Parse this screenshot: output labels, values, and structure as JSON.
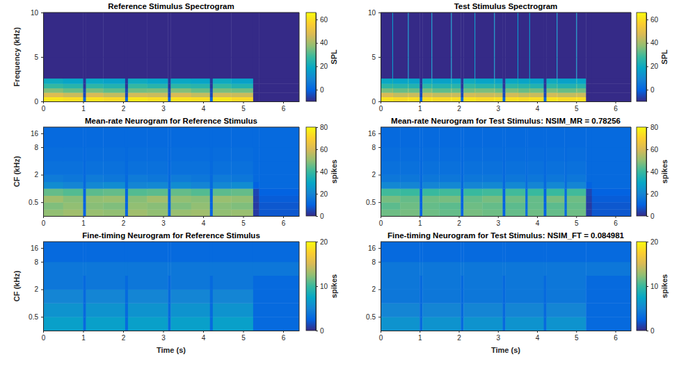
{
  "chart_data": [
    {
      "type": "heatmap",
      "title": "Reference Stimulus Spectrogram",
      "y_label": "Frequency (kHz)",
      "xlim": [
        0,
        6.4
      ],
      "xticks": [
        0,
        1,
        2,
        3,
        4,
        5,
        6
      ],
      "ylim": [
        0,
        10
      ],
      "yticks": [
        0,
        5,
        10
      ],
      "x_edges": [
        0,
        0.5,
        1.0,
        1.07,
        1.5,
        2.05,
        2.12,
        2.6,
        3.12,
        3.19,
        3.7,
        4.17,
        4.24,
        4.7,
        5.25,
        5.4,
        6.4
      ],
      "y_edges": [
        0,
        0.5,
        1,
        1.5,
        2,
        2.6,
        5,
        10
      ],
      "cells": [
        [
          62,
          60,
          0,
          61,
          59,
          0,
          62,
          60,
          0,
          61,
          60,
          0,
          62,
          59,
          -10,
          -10
        ],
        [
          48,
          45,
          -5,
          47,
          44,
          -5,
          46,
          45,
          -5,
          47,
          44,
          -5,
          46,
          45,
          -10,
          -10
        ],
        [
          36,
          33,
          -5,
          35,
          32,
          -5,
          34,
          35,
          -5,
          36,
          33,
          -5,
          35,
          34,
          -10,
          -10
        ],
        [
          27,
          25,
          -8,
          26,
          24,
          -8,
          27,
          25,
          -8,
          26,
          25,
          -8,
          27,
          24,
          -10,
          -10
        ],
        [
          20,
          18,
          -8,
          19,
          17,
          -8,
          20,
          18,
          -8,
          19,
          18,
          -8,
          20,
          17,
          -10,
          -10
        ],
        [
          -10,
          -10,
          -10,
          -10,
          -10,
          -10,
          -10,
          -10,
          -10,
          -10,
          -10,
          -10,
          -10,
          -10,
          -10,
          -10
        ],
        [
          -10,
          -10,
          -10,
          -10,
          -10,
          -10,
          -10,
          -10,
          -10,
          -10,
          -10,
          -10,
          -10,
          -10,
          -10,
          -10
        ]
      ],
      "color_range": [
        -10,
        66
      ],
      "color_ticks": [
        0,
        20,
        40,
        60
      ],
      "color_label": "SPL"
    },
    {
      "type": "heatmap",
      "title": "Test Stimulus Spectrogram",
      "xlim": [
        0,
        6.4
      ],
      "xticks": [
        0,
        1,
        2,
        3,
        4,
        5,
        6
      ],
      "ylim": [
        0,
        10
      ],
      "yticks": [
        0,
        5,
        10
      ],
      "x_edges": [
        0,
        0.3,
        0.32,
        0.7,
        0.72,
        1.0,
        1.07,
        1.3,
        1.32,
        1.8,
        1.82,
        2.05,
        2.12,
        2.4,
        2.42,
        2.9,
        2.92,
        3.12,
        3.19,
        3.5,
        3.52,
        3.8,
        3.82,
        4.17,
        4.24,
        4.5,
        4.52,
        5.0,
        5.02,
        5.25,
        5.4,
        6.4
      ],
      "y_edges": [
        0,
        0.5,
        1,
        1.5,
        2,
        2.6,
        5,
        10
      ],
      "cells": [
        [
          61,
          63,
          59,
          63,
          60,
          0,
          60,
          63,
          59,
          63,
          60,
          0,
          61,
          63,
          59,
          63,
          60,
          0,
          60,
          63,
          59,
          63,
          60,
          0,
          61,
          63,
          59,
          63,
          60,
          -10,
          -10
        ],
        [
          47,
          49,
          44,
          49,
          45,
          -5,
          46,
          49,
          44,
          49,
          45,
          -5,
          46,
          49,
          45,
          49,
          44,
          -5,
          46,
          49,
          44,
          49,
          45,
          -5,
          46,
          49,
          44,
          49,
          45,
          -10,
          -10
        ],
        [
          35,
          38,
          33,
          38,
          33,
          -5,
          35,
          38,
          32,
          38,
          33,
          -5,
          34,
          38,
          35,
          38,
          33,
          -5,
          35,
          38,
          33,
          38,
          34,
          -5,
          35,
          38,
          33,
          38,
          34,
          -10,
          -10
        ],
        [
          26,
          30,
          25,
          30,
          24,
          -8,
          26,
          30,
          24,
          30,
          25,
          -8,
          27,
          30,
          25,
          30,
          24,
          -8,
          26,
          30,
          25,
          30,
          24,
          -8,
          26,
          30,
          24,
          30,
          25,
          -10,
          -10
        ],
        [
          19,
          24,
          18,
          24,
          17,
          -8,
          19,
          24,
          17,
          24,
          18,
          -8,
          20,
          24,
          18,
          24,
          17,
          -8,
          19,
          24,
          18,
          24,
          17,
          -8,
          20,
          24,
          17,
          24,
          18,
          -10,
          -10
        ],
        [
          -10,
          15,
          -10,
          15,
          -10,
          -10,
          -10,
          15,
          -10,
          15,
          -10,
          -10,
          -10,
          15,
          -10,
          15,
          -10,
          -10,
          -10,
          15,
          -10,
          15,
          -10,
          -10,
          -10,
          15,
          -10,
          15,
          -10,
          -10,
          -10
        ],
        [
          -10,
          15,
          -10,
          15,
          -10,
          -10,
          -10,
          15,
          -10,
          15,
          -10,
          -10,
          -10,
          15,
          -10,
          15,
          -10,
          -10,
          -10,
          15,
          -10,
          15,
          -10,
          -10,
          -10,
          15,
          -10,
          15,
          -10,
          -10,
          -10
        ]
      ],
      "color_range": [
        -10,
        66
      ],
      "color_ticks": [
        0,
        20,
        40,
        60
      ],
      "color_label": "SPL"
    },
    {
      "type": "heatmap",
      "title": "Mean-rate Neurogram for Reference Stimulus",
      "y_label": "CF (kHz)",
      "log": "y",
      "xlim": [
        0,
        6.4
      ],
      "xticks": [
        0,
        1,
        2,
        3,
        4,
        5,
        6
      ],
      "ylim": [
        0.25,
        22
      ],
      "yticks": [
        0.5,
        2,
        8,
        16
      ],
      "x_edges": [
        0,
        0.5,
        1.0,
        1.07,
        1.5,
        2.05,
        2.12,
        2.6,
        3.12,
        3.19,
        3.7,
        4.17,
        4.24,
        4.7,
        5.25,
        5.4,
        6.4
      ],
      "y_edges": [
        0.25,
        0.35,
        0.5,
        0.7,
        1.0,
        1.4,
        2,
        4,
        8,
        22
      ],
      "cells": [
        [
          50,
          52,
          10,
          51,
          50,
          10,
          52,
          50,
          10,
          51,
          52,
          10,
          50,
          51,
          3,
          8
        ],
        [
          48,
          50,
          10,
          49,
          48,
          10,
          50,
          49,
          10,
          48,
          50,
          10,
          49,
          48,
          3,
          8
        ],
        [
          52,
          49,
          10,
          50,
          51,
          10,
          49,
          52,
          10,
          50,
          49,
          10,
          51,
          50,
          4,
          9
        ],
        [
          45,
          43,
          10,
          44,
          45,
          10,
          43,
          44,
          10,
          45,
          43,
          10,
          44,
          45,
          5,
          10
        ],
        [
          22,
          20,
          12,
          21,
          22,
          12,
          20,
          21,
          12,
          22,
          20,
          12,
          21,
          22,
          10,
          12
        ],
        [
          17,
          16,
          12,
          17,
          16,
          12,
          17,
          16,
          12,
          17,
          16,
          12,
          17,
          16,
          12,
          12
        ],
        [
          14,
          14,
          12,
          14,
          14,
          12,
          14,
          14,
          12,
          14,
          14,
          12,
          14,
          14,
          12,
          12
        ],
        [
          13,
          13,
          12,
          13,
          13,
          12,
          13,
          13,
          12,
          13,
          13,
          12,
          13,
          13,
          12,
          12
        ],
        [
          12,
          12,
          12,
          12,
          12,
          12,
          12,
          12,
          12,
          12,
          12,
          12,
          12,
          12,
          12,
          12
        ]
      ],
      "color_range": [
        0,
        80
      ],
      "color_ticks": [
        0,
        20,
        40,
        60,
        80
      ],
      "color_label": "spikes"
    },
    {
      "type": "heatmap",
      "title": "Mean-rate Neurogram for Test Stimulus: NSIM_MR = 0.78256",
      "log": "y",
      "xlim": [
        0,
        6.4
      ],
      "xticks": [
        0,
        1,
        2,
        3,
        4,
        5,
        6
      ],
      "ylim": [
        0.25,
        22
      ],
      "yticks": [
        0.5,
        2,
        8,
        16
      ],
      "x_edges": [
        0,
        0.5,
        1.0,
        1.07,
        1.5,
        2.05,
        2.12,
        2.6,
        3.12,
        3.19,
        3.7,
        3.76,
        4.17,
        4.24,
        4.7,
        4.76,
        5.25,
        5.4,
        6.4
      ],
      "y_edges": [
        0.25,
        0.35,
        0.5,
        0.7,
        1.0,
        1.4,
        2,
        4,
        8,
        22
      ],
      "cells": [
        [
          46,
          47,
          10,
          46,
          45,
          10,
          47,
          46,
          10,
          45,
          12,
          46,
          10,
          45,
          12,
          46,
          3,
          8
        ],
        [
          44,
          46,
          10,
          45,
          44,
          10,
          46,
          45,
          10,
          44,
          12,
          45,
          10,
          44,
          12,
          45,
          3,
          8
        ],
        [
          47,
          45,
          10,
          46,
          47,
          10,
          45,
          47,
          10,
          46,
          12,
          45,
          10,
          47,
          12,
          46,
          4,
          9
        ],
        [
          41,
          40,
          10,
          40,
          41,
          10,
          40,
          41,
          10,
          41,
          12,
          40,
          10,
          40,
          12,
          41,
          5,
          10
        ],
        [
          21,
          20,
          12,
          20,
          21,
          12,
          20,
          21,
          12,
          21,
          13,
          20,
          12,
          21,
          13,
          20,
          10,
          12
        ],
        [
          16,
          16,
          12,
          16,
          16,
          12,
          16,
          16,
          12,
          16,
          13,
          16,
          12,
          16,
          13,
          16,
          12,
          12
        ],
        [
          14,
          14,
          12,
          14,
          14,
          12,
          14,
          14,
          12,
          14,
          13,
          14,
          12,
          14,
          13,
          14,
          12,
          12
        ],
        [
          13,
          13,
          12,
          13,
          13,
          12,
          13,
          13,
          12,
          13,
          12,
          13,
          12,
          13,
          12,
          13,
          12,
          12
        ],
        [
          12,
          12,
          12,
          12,
          12,
          12,
          12,
          12,
          12,
          12,
          12,
          12,
          12,
          12,
          12,
          12,
          12,
          12
        ]
      ],
      "color_range": [
        0,
        80
      ],
      "color_ticks": [
        0,
        20,
        40,
        60,
        80
      ],
      "color_label": "spikes"
    },
    {
      "type": "heatmap",
      "title": "Fine-timing Neurogram for Reference Stimulus",
      "x_label": "Time (s)",
      "y_label": "CF (kHz)",
      "log": "y",
      "xlim": [
        0,
        6.4
      ],
      "xticks": [
        0,
        1,
        2,
        3,
        4,
        5,
        6
      ],
      "ylim": [
        0.25,
        22
      ],
      "yticks": [
        0.5,
        2,
        8,
        16
      ],
      "x_edges": [
        0,
        1.0,
        1.07,
        2.05,
        2.12,
        3.12,
        3.19,
        4.17,
        4.24,
        5.25,
        6.4
      ],
      "y_edges": [
        0.25,
        0.5,
        1,
        2,
        4,
        8,
        22
      ],
      "cells": [
        [
          7,
          3,
          7,
          3,
          7,
          3,
          7,
          3,
          7,
          3
        ],
        [
          6,
          3,
          6,
          3,
          6,
          3,
          6,
          3,
          6,
          3
        ],
        [
          5,
          3,
          5,
          3,
          5,
          3,
          5,
          3,
          5,
          3
        ],
        [
          4,
          3,
          4,
          3,
          4,
          3,
          4,
          3,
          4,
          3
        ],
        [
          4,
          4,
          4,
          4,
          4,
          4,
          4,
          4,
          4,
          4
        ],
        [
          3,
          3,
          3,
          3,
          3,
          3,
          3,
          3,
          3,
          3
        ]
      ],
      "color_range": [
        0,
        20
      ],
      "color_ticks": [
        0,
        10,
        20
      ],
      "color_label": "spikes"
    },
    {
      "type": "heatmap",
      "title": "Fine-timing Neurogram for Test Stimulus: NSIM_FT = 0.084981",
      "x_label": "Time (s)",
      "log": "y",
      "xlim": [
        0,
        6.4
      ],
      "xticks": [
        0,
        1,
        2,
        3,
        4,
        5,
        6
      ],
      "ylim": [
        0.25,
        22
      ],
      "yticks": [
        0.5,
        2,
        8,
        16
      ],
      "x_edges": [
        0,
        1.0,
        1.07,
        2.05,
        2.12,
        3.12,
        3.19,
        4.17,
        4.24,
        5.25,
        6.4
      ],
      "y_edges": [
        0.25,
        0.5,
        1,
        2,
        4,
        8,
        22
      ],
      "cells": [
        [
          6,
          3,
          6,
          3,
          6,
          3,
          6,
          3,
          6,
          3
        ],
        [
          5,
          3,
          5,
          3,
          5,
          3,
          5,
          3,
          5,
          3
        ],
        [
          4,
          3,
          4,
          3,
          4,
          3,
          4,
          3,
          4,
          3
        ],
        [
          4,
          3,
          4,
          3,
          4,
          3,
          4,
          3,
          4,
          3
        ],
        [
          4,
          4,
          4,
          4,
          4,
          4,
          4,
          4,
          4,
          4
        ],
        [
          3,
          3,
          3,
          3,
          3,
          3,
          3,
          3,
          3,
          3
        ]
      ],
      "color_range": [
        0,
        20
      ],
      "color_ticks": [
        0,
        10,
        20
      ],
      "color_label": "spikes"
    }
  ]
}
